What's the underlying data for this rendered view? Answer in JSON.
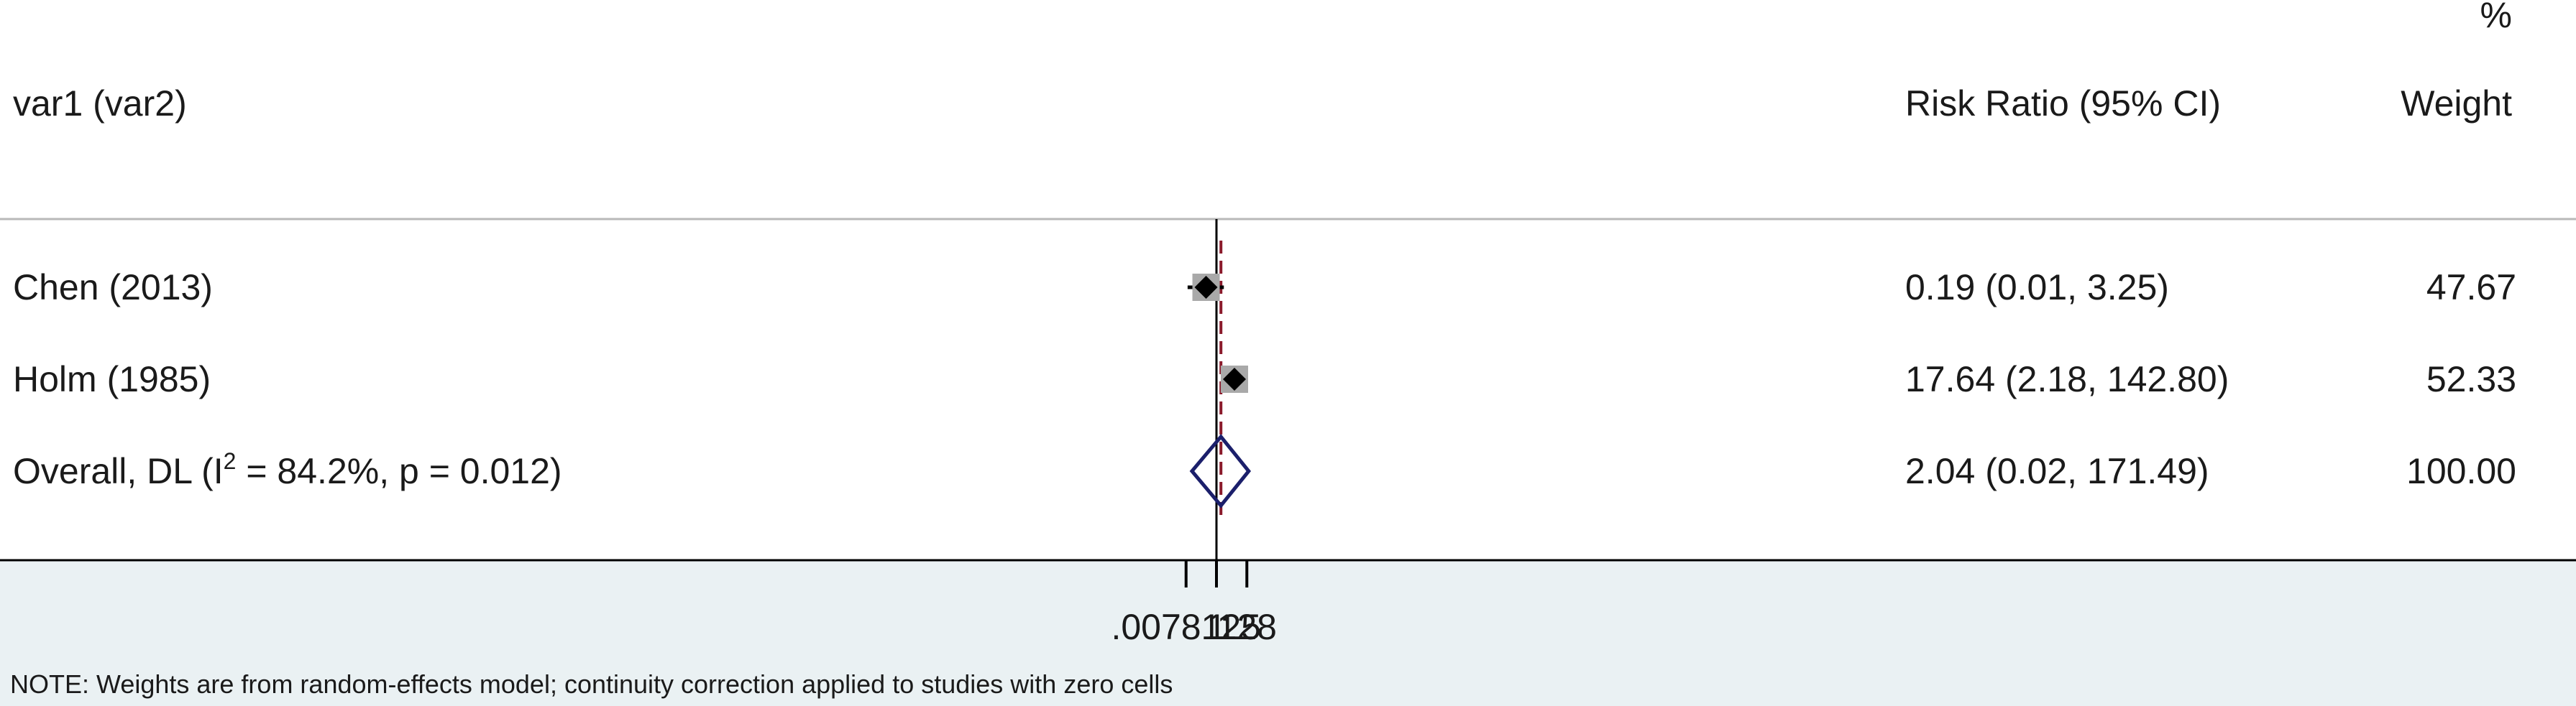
{
  "header": {
    "study_col": "var1 (var2)",
    "rr_col": "Risk Ratio (95% CI)",
    "weight_col_pct": "%",
    "weight_col": "Weight"
  },
  "rows": [
    {
      "label": "Chen (2013)",
      "ci_text": "0.19 (0.01, 3.25)",
      "weight": "47.67"
    },
    {
      "label": "Holm (1985)",
      "ci_text": "17.64 (2.18, 142.80)",
      "weight": "52.33"
    }
  ],
  "overall": {
    "label_pre": "Overall, DL (I",
    "label_sup": "2",
    "label_post": " = 84.2%, p = 0.012)",
    "ci_text": "2.04 (0.02, 171.49)",
    "weight": "100.00"
  },
  "note": "NOTE: Weights are from random-effects model; continuity correction applied to studies with zero cells",
  "colors": {
    "diamond": "#1b1f6b",
    "null_line": "#000000",
    "overall_line": "#8b1a2b",
    "box": "#a9a9a9",
    "bottom_panel": "#eaf1f3"
  },
  "chart_data": {
    "type": "forest",
    "x_scale": "log2",
    "x_ticks": [
      0.0078125,
      1,
      128
    ],
    "x_tick_labels": [
      ".0078125",
      "1",
      "128"
    ],
    "null_value": 1,
    "studies": [
      {
        "name": "Chen (2013)",
        "rr": 0.19,
        "lo": 0.01,
        "hi": 3.25,
        "weight": 47.67
      },
      {
        "name": "Holm (1985)",
        "rr": 17.64,
        "lo": 2.18,
        "hi": 142.8,
        "weight": 52.33
      }
    ],
    "overall": {
      "rr": 2.04,
      "lo": 0.02,
      "hi": 171.49,
      "weight": 100.0
    }
  }
}
